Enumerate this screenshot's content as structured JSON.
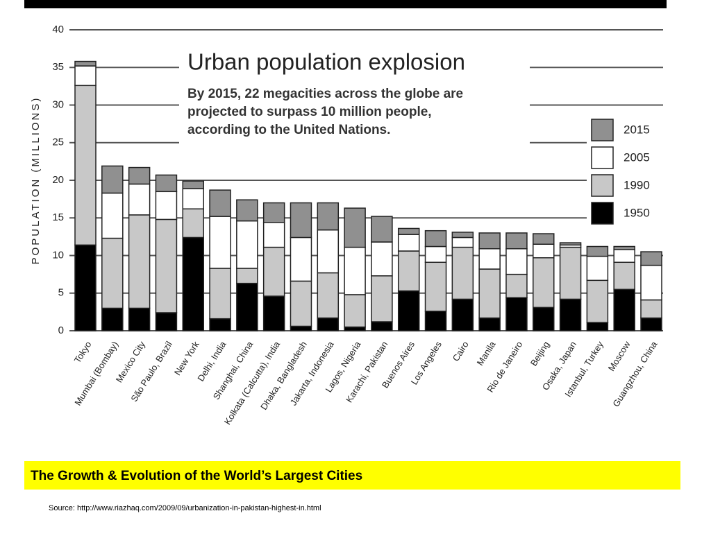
{
  "chart_data": {
    "type": "stacked-bar",
    "title": "Urban population explosion",
    "subtitle": [
      "By 2015, 22 megacities across the globe are",
      "projected to surpass 10 million people,",
      "according to the United Nations."
    ],
    "ylabel": "POPULATION (MILLIONS)",
    "categories": [
      "Tokyo",
      "Mumbai (Bombay)",
      "Mexico City",
      "São Paulo, Brazil",
      "New York",
      "Delhi, India",
      "Shanghai, China",
      "Kolkata (Calcutta), India",
      "Dhaka, Bangladesh",
      "Jakarta, Indonesia",
      "Lagos, Nigeria",
      "Karachi, Pakistan",
      "Buenos Aires",
      "Los Angeles",
      "Cairo",
      "Manila",
      "Rio de Janeiro",
      "Beijing",
      "Osaka, Japan",
      "Istanbul, Turkey",
      "Moscow",
      "Guangzhou, China"
    ],
    "series": [
      {
        "name": "1950",
        "color": "#000000",
        "values": [
          11.4,
          3.0,
          3.0,
          2.4,
          12.4,
          1.6,
          6.3,
          4.6,
          0.6,
          1.7,
          0.5,
          1.2,
          5.3,
          2.6,
          4.2,
          1.7,
          4.4,
          3.1,
          4.2,
          1.1,
          5.5,
          1.7
        ]
      },
      {
        "name": "1990",
        "color": "#c8c8c8",
        "values": [
          21.2,
          9.3,
          12.4,
          12.4,
          3.8,
          6.7,
          2.0,
          6.5,
          6.0,
          6.0,
          4.3,
          6.1,
          5.3,
          6.5,
          6.9,
          6.5,
          3.1,
          6.6,
          6.9,
          5.6,
          3.6,
          2.4
        ]
      },
      {
        "name": "2005",
        "color": "#ffffff",
        "values": [
          2.6,
          6.0,
          4.1,
          3.7,
          2.7,
          6.9,
          6.3,
          3.3,
          5.8,
          5.7,
          6.3,
          4.5,
          2.2,
          2.1,
          1.3,
          2.7,
          3.4,
          1.8,
          0.3,
          3.2,
          1.7,
          4.6
        ]
      },
      {
        "name": "2015",
        "color": "#909090",
        "values": [
          0.6,
          3.6,
          2.2,
          2.2,
          1.0,
          3.5,
          2.8,
          2.6,
          4.6,
          3.6,
          5.2,
          3.4,
          0.8,
          2.1,
          0.7,
          2.1,
          2.1,
          1.4,
          0.3,
          1.3,
          0.4,
          1.8
        ]
      }
    ],
    "ylim": [
      0,
      40
    ],
    "yticks": [
      0,
      5,
      10,
      15,
      20,
      25,
      30,
      35,
      40
    ],
    "grid": true,
    "legend": "right"
  },
  "caption": "The Growth & Evolution of the World’s Largest Cities",
  "source": "Source: http://www.riazhaq.com/2009/09/urbanization-in-pakistan-highest-in.html"
}
